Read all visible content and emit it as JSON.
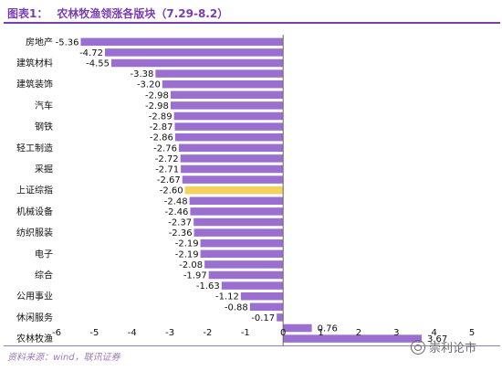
{
  "header": {
    "figure_label": "图表1：",
    "title_text": "农林牧渔领涨各版块（7.29-8.2）"
  },
  "footer": {
    "source": "资料来源：wind，联讯证券",
    "watermark": "崇利论市"
  },
  "colors": {
    "bar": "#9b6fd0",
    "highlight_bar": "#f5d25e",
    "title": "#7a3db0"
  },
  "chart_data": {
    "type": "bar",
    "orientation": "horizontal",
    "title": "农林牧渔领涨各版块（7.29-8.2）",
    "xlim": [
      -6,
      5
    ],
    "x_ticks": [
      -6,
      -5,
      -4,
      -3,
      -2,
      -1,
      0,
      1,
      2,
      3,
      4,
      5
    ],
    "grid": false,
    "highlight_category": "上证综指",
    "categories": [
      "房地产",
      "",
      "建筑材料",
      "",
      "建筑装饰",
      "",
      "汽车",
      "",
      "钢铁",
      "",
      "轻工制造",
      "",
      "采掘",
      "",
      "上证综指",
      "",
      "机械设备",
      "",
      "纺织服装",
      "",
      "电子",
      "",
      "综合",
      "",
      "公用事业",
      "",
      "休闲服务",
      "",
      "农林牧渔"
    ],
    "values": [
      -5.36,
      -4.72,
      -4.55,
      -3.38,
      -3.2,
      -2.98,
      -2.98,
      -2.89,
      -2.87,
      -2.86,
      -2.76,
      -2.72,
      -2.71,
      -2.67,
      -2.6,
      -2.48,
      -2.46,
      -2.37,
      -2.36,
      -2.19,
      -2.19,
      -2.08,
      -1.97,
      -1.63,
      -1.12,
      -0.88,
      -0.17,
      0.76,
      3.67
    ],
    "value_labels": [
      "-5.36",
      "-4.72",
      "-4.55",
      "-3.38",
      "-3.20",
      "-2.98",
      "-2.98",
      "-2.89",
      "-2.87",
      "-2.86",
      "-2.76",
      "-2.72",
      "-2.71",
      "-2.67",
      "-2.60",
      "-2.48",
      "-2.46",
      "-2.37",
      "-2.36",
      "-2.19",
      "-2.19",
      "-2.08",
      "-1.97",
      "-1.63",
      "-1.12",
      "-0.88",
      "-0.17",
      "0.76",
      "3.67"
    ]
  }
}
